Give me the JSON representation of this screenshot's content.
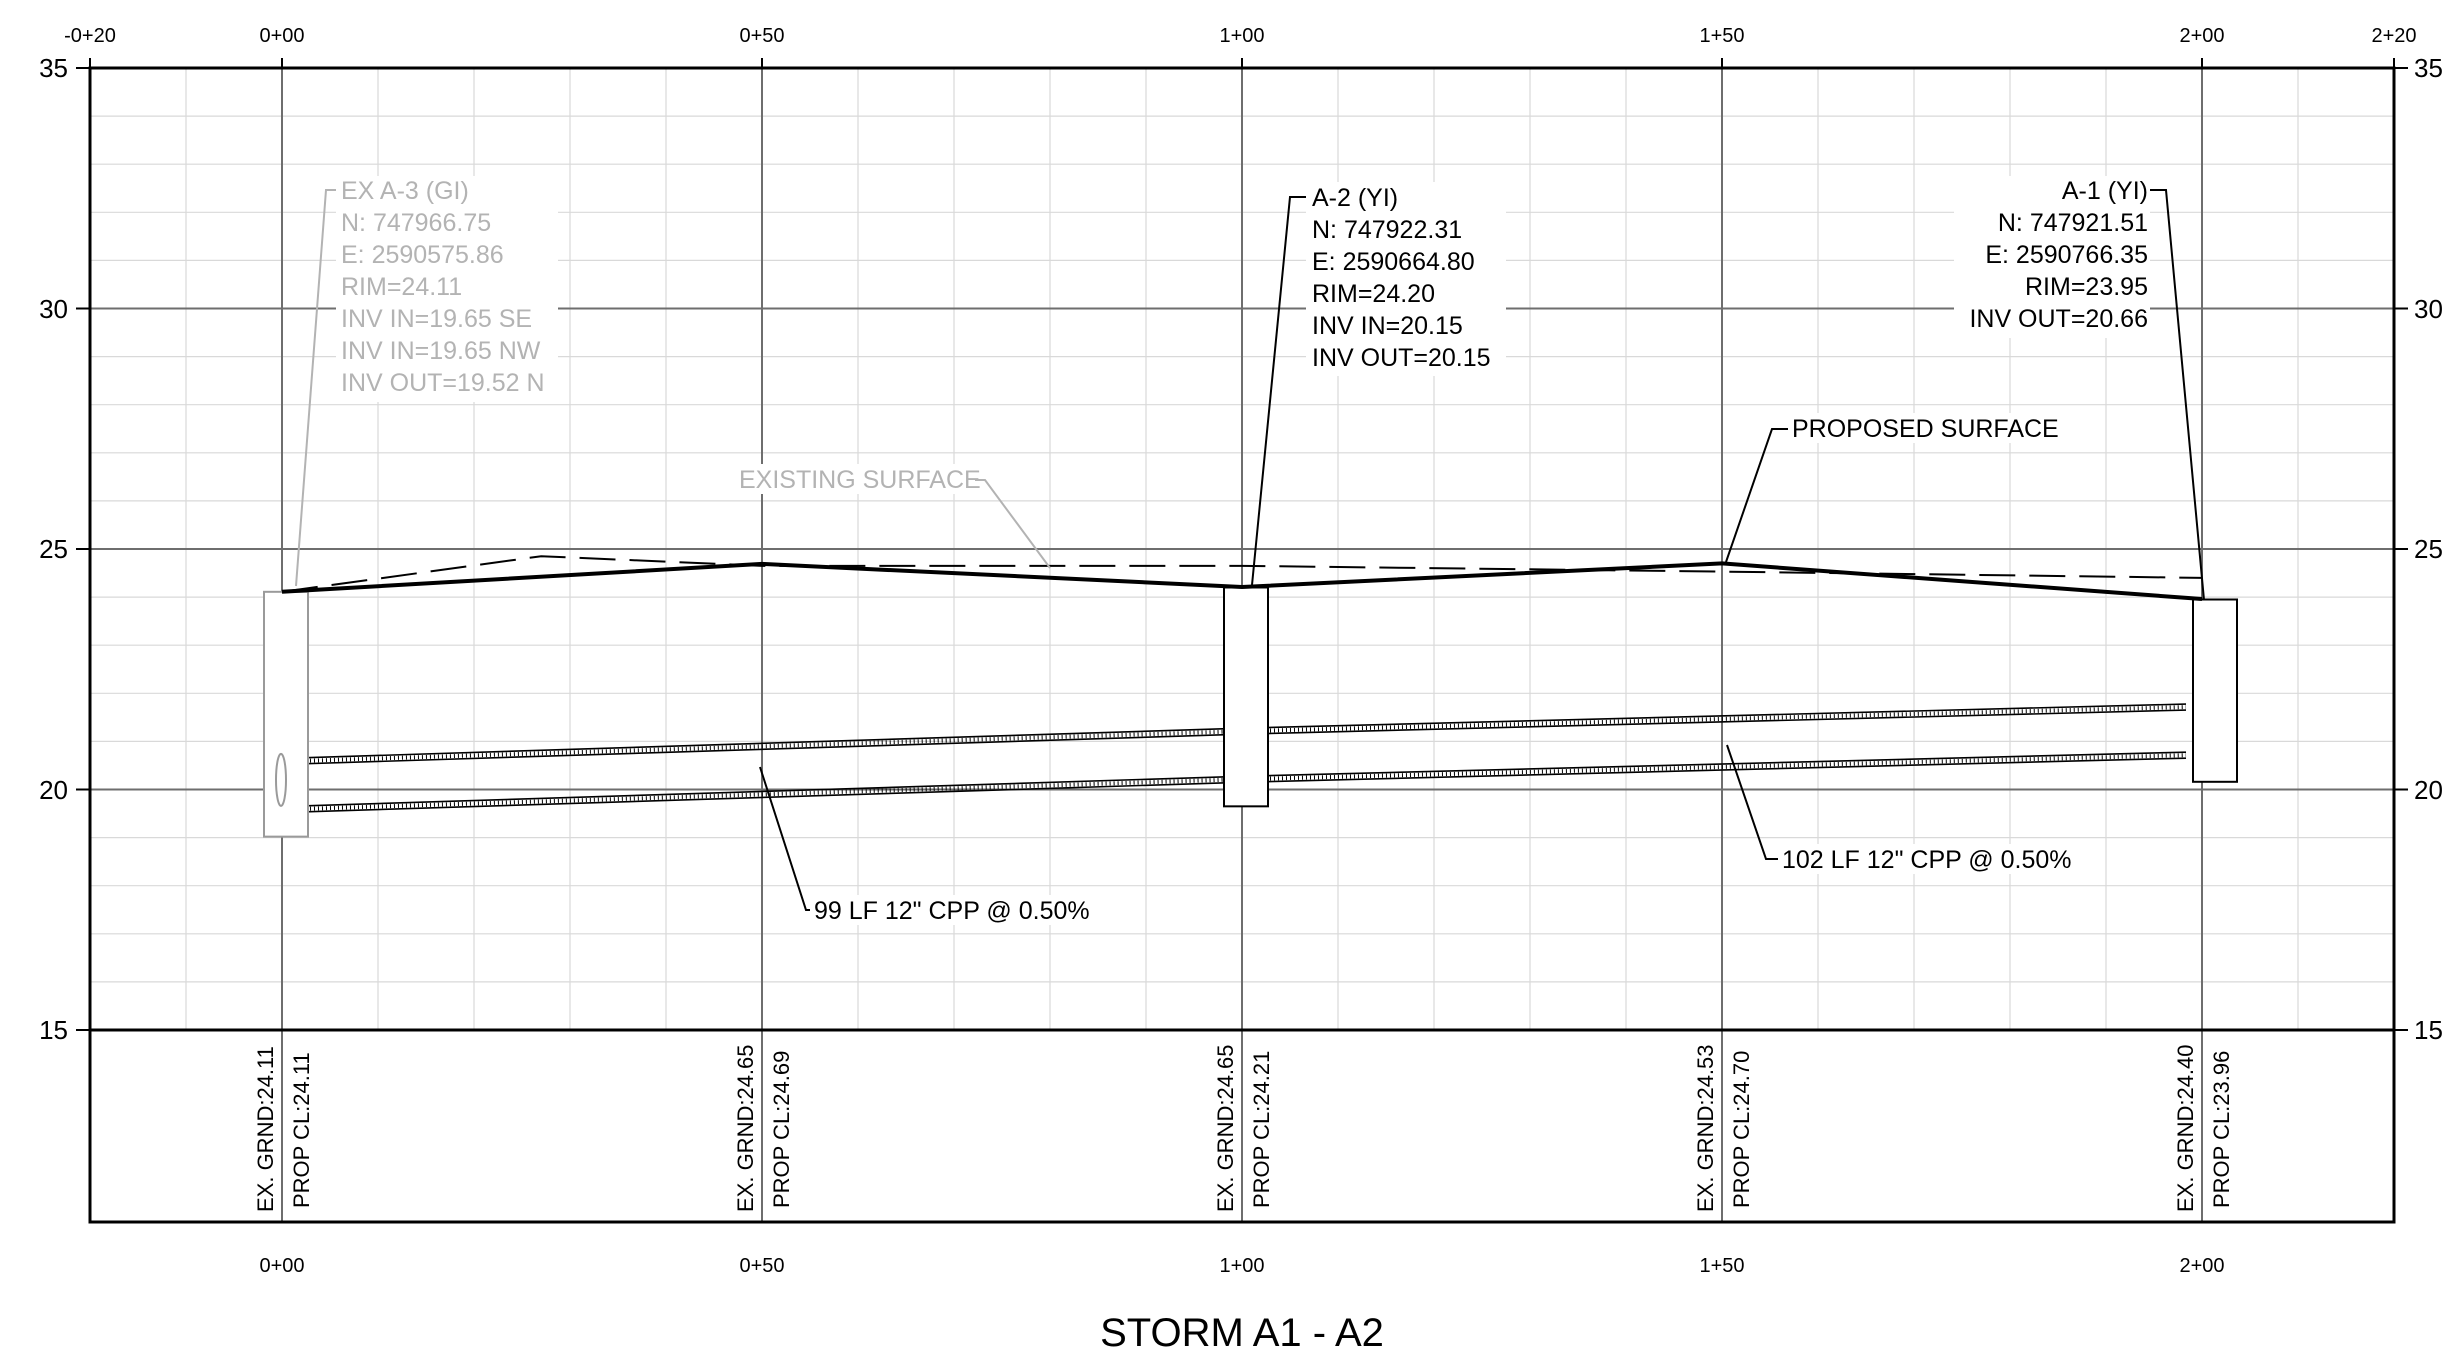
{
  "sheet": {
    "title": "STORM A1 - A2",
    "colors": {
      "ink": "#000000",
      "grid_minor": "#d9d9d9",
      "grid_major": "#6e6e6e",
      "existing_callout": "#b3b3b3"
    }
  },
  "axes": {
    "station_top_labels": [
      "-0+20",
      "0+00",
      "0+50",
      "1+00",
      "1+50",
      "2+00",
      "2+20"
    ],
    "station_bottom_labels": [
      "0+00",
      "0+50",
      "1+00",
      "1+50",
      "2+00"
    ],
    "elevation_left_labels": [
      "35",
      "30",
      "25",
      "20",
      "15"
    ],
    "elevation_right_labels": [
      "35",
      "30",
      "25",
      "20",
      "15"
    ]
  },
  "structures": {
    "ex_a3": {
      "lines": [
        "EX A-3 (GI)",
        "N: 747966.75",
        "E: 2590575.86",
        "RIM=24.11",
        "INV IN=19.65 SE",
        "INV IN=19.65 NW",
        "INV OUT=19.52 N"
      ],
      "station_ft": 0,
      "rim": 24.11,
      "invert": 19.52
    },
    "a2": {
      "lines": [
        "A-2 (YI)",
        "N: 747922.31",
        "E: 2590664.80",
        "RIM=24.20",
        "INV IN=20.15",
        "INV OUT=20.15"
      ],
      "station_ft": 100,
      "rim": 24.2,
      "invert": 20.15
    },
    "a1": {
      "lines": [
        "A-1 (YI)",
        "N: 747921.51",
        "E: 2590766.35",
        "RIM=23.95",
        "INV OUT=20.66"
      ],
      "station_ft": 200,
      "rim": 23.95,
      "invert": 20.66
    }
  },
  "callouts": {
    "existing_surface": "EXISTING SURFACE",
    "proposed_surface": "PROPOSED SURFACE",
    "pipe_1": "99 LF 12\" CPP @ 0.50%",
    "pipe_2": "102 LF 12\" CPP @ 0.50%"
  },
  "elevation_band": [
    {
      "station": "0+00",
      "ex_grnd": "EX. GRND:24.11",
      "prop_cl": "PROP CL:24.11"
    },
    {
      "station": "0+50",
      "ex_grnd": "EX. GRND:24.65",
      "prop_cl": "PROP CL:24.69"
    },
    {
      "station": "1+00",
      "ex_grnd": "EX. GRND:24.65",
      "prop_cl": "PROP CL:24.21"
    },
    {
      "station": "1+50",
      "ex_grnd": "EX. GRND:24.53",
      "prop_cl": "PROP CL:24.70"
    },
    {
      "station": "2+00",
      "ex_grnd": "EX. GRND:24.40",
      "prop_cl": "PROP CL:23.96"
    }
  ],
  "chart_data": {
    "type": "line",
    "title": "STORM A1 - A2",
    "xlabel": "",
    "ylabel": "",
    "xlim": [
      -20,
      220
    ],
    "ylim": [
      15,
      35
    ],
    "grid": true,
    "series": [
      {
        "name": "PROPOSED SURFACE",
        "x": [
          0,
          50,
          100,
          150,
          200
        ],
        "y": [
          24.11,
          24.69,
          24.21,
          24.7,
          23.96
        ]
      },
      {
        "name": "EXISTING SURFACE",
        "x": [
          0,
          27,
          50,
          100,
          150,
          200
        ],
        "y": [
          24.11,
          24.85,
          24.65,
          24.65,
          24.53,
          24.4
        ]
      },
      {
        "name": "99 LF 12\" CPP @ 0.50%",
        "x": [
          0,
          100
        ],
        "y": [
          19.52,
          20.15
        ]
      },
      {
        "name": "102 LF 12\" CPP @ 0.50%",
        "x": [
          100,
          200
        ],
        "y": [
          20.15,
          20.66
        ]
      }
    ]
  }
}
